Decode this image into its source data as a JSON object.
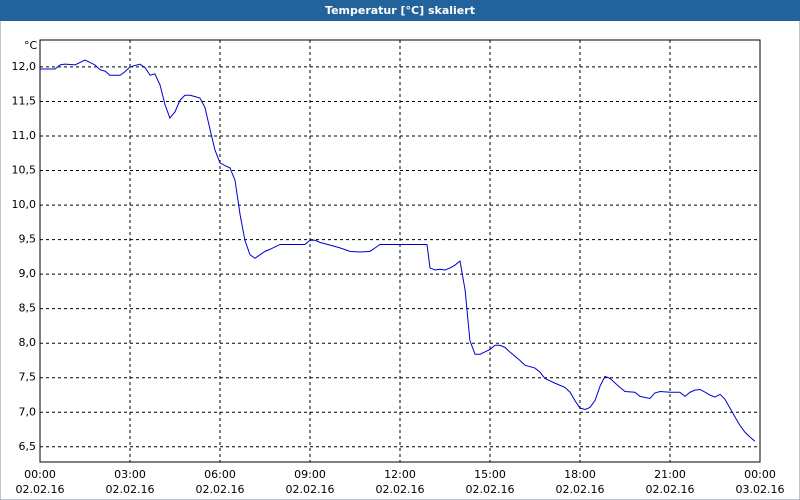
{
  "chart_data": {
    "type": "line",
    "title": "Temperatur [°C] skaliert",
    "y_unit": "°C",
    "x": [
      0,
      0.5,
      0.67,
      0.83,
      1.17,
      1.5,
      1.83,
      2,
      2.17,
      2.33,
      2.67,
      2.83,
      3,
      3.33,
      3.5,
      3.67,
      3.83,
      4,
      4.17,
      4.33,
      4.5,
      4.67,
      4.83,
      5,
      5.17,
      5.33,
      5.5,
      5.67,
      5.83,
      6,
      6.17,
      6.33,
      6.5,
      6.67,
      6.83,
      7,
      7.17,
      7.33,
      7.5,
      7.67,
      8,
      8.33,
      8.67,
      8.83,
      9,
      9.17,
      9.33,
      9.67,
      10,
      10.33,
      10.67,
      11,
      11.17,
      11.33,
      12,
      12.67,
      12.9,
      13,
      13.17,
      13.33,
      13.5,
      13.67,
      13.83,
      14,
      14.17,
      14.33,
      14.5,
      14.67,
      15,
      15.17,
      15.33,
      15.5,
      15.67,
      16,
      16.17,
      16.5,
      16.67,
      16.83,
      17.17,
      17.5,
      17.67,
      17.83,
      18,
      18.17,
      18.33,
      18.5,
      18.67,
      18.83,
      19,
      19.33,
      19.5,
      19.83,
      20,
      20.33,
      20.5,
      20.67,
      21,
      21.33,
      21.5,
      21.67,
      21.83,
      22,
      22.17,
      22.33,
      22.5,
      22.67,
      22.83,
      23,
      23.17,
      23.33,
      23.5,
      23.67,
      23.83
    ],
    "values": [
      11.97,
      11.97,
      12.03,
      12.04,
      12.03,
      12.1,
      12.03,
      11.96,
      11.94,
      11.88,
      11.88,
      11.93,
      12.0,
      12.04,
      11.99,
      11.88,
      11.9,
      11.74,
      11.45,
      11.26,
      11.35,
      11.52,
      11.59,
      11.59,
      11.57,
      11.55,
      11.41,
      11.09,
      10.8,
      10.61,
      10.57,
      10.54,
      10.36,
      9.86,
      9.49,
      9.28,
      9.23,
      9.28,
      9.33,
      9.36,
      9.43,
      9.43,
      9.43,
      9.43,
      9.49,
      9.49,
      9.46,
      9.42,
      9.38,
      9.33,
      9.32,
      9.33,
      9.38,
      9.43,
      9.43,
      9.43,
      9.43,
      9.09,
      9.06,
      9.07,
      9.06,
      9.09,
      9.13,
      9.19,
      8.77,
      8.04,
      7.84,
      7.84,
      7.91,
      7.97,
      7.97,
      7.94,
      7.87,
      7.75,
      7.68,
      7.64,
      7.58,
      7.49,
      7.42,
      7.36,
      7.29,
      7.17,
      7.06,
      7.04,
      7.07,
      7.17,
      7.38,
      7.52,
      7.49,
      7.36,
      7.3,
      7.29,
      7.23,
      7.2,
      7.28,
      7.3,
      7.29,
      7.29,
      7.23,
      7.29,
      7.32,
      7.33,
      7.29,
      7.25,
      7.22,
      7.26,
      7.19,
      7.06,
      6.93,
      6.81,
      6.71,
      6.64,
      6.58
    ],
    "color": "#0000cc",
    "xlim": [
      0,
      24
    ],
    "xticks": [
      {
        "value": 0,
        "label": "00:00"
      },
      {
        "value": 3,
        "label": "03:00"
      },
      {
        "value": 6,
        "label": "06:00"
      },
      {
        "value": 9,
        "label": "09:00"
      },
      {
        "value": 12,
        "label": "12:00"
      },
      {
        "value": 15,
        "label": "15:00"
      },
      {
        "value": 18,
        "label": "18:00"
      },
      {
        "value": 21,
        "label": "21:00"
      },
      {
        "value": 24,
        "label": "00:00"
      }
    ],
    "xtick_dates": [
      "02.02.16",
      "02.02.16",
      "02.02.16",
      "02.02.16",
      "02.02.16",
      "02.02.16",
      "02.02.16",
      "02.02.16",
      "03.02.16"
    ],
    "ylim": [
      6.28,
      12.39
    ],
    "yticks": [
      {
        "value": 6.5,
        "label": "6,5"
      },
      {
        "value": 7,
        "label": "7,0"
      },
      {
        "value": 7.5,
        "label": "7,5"
      },
      {
        "value": 8,
        "label": "8,0"
      },
      {
        "value": 8.5,
        "label": "8,5"
      },
      {
        "value": 9,
        "label": "9,0"
      },
      {
        "value": 9.5,
        "label": "9,5"
      },
      {
        "value": 10,
        "label": "10,0"
      },
      {
        "value": 10.5,
        "label": "10,5"
      },
      {
        "value": 11,
        "label": "11,0"
      },
      {
        "value": 11.5,
        "label": "11,5"
      },
      {
        "value": 12,
        "label": "12,0"
      }
    ],
    "grid": true
  }
}
